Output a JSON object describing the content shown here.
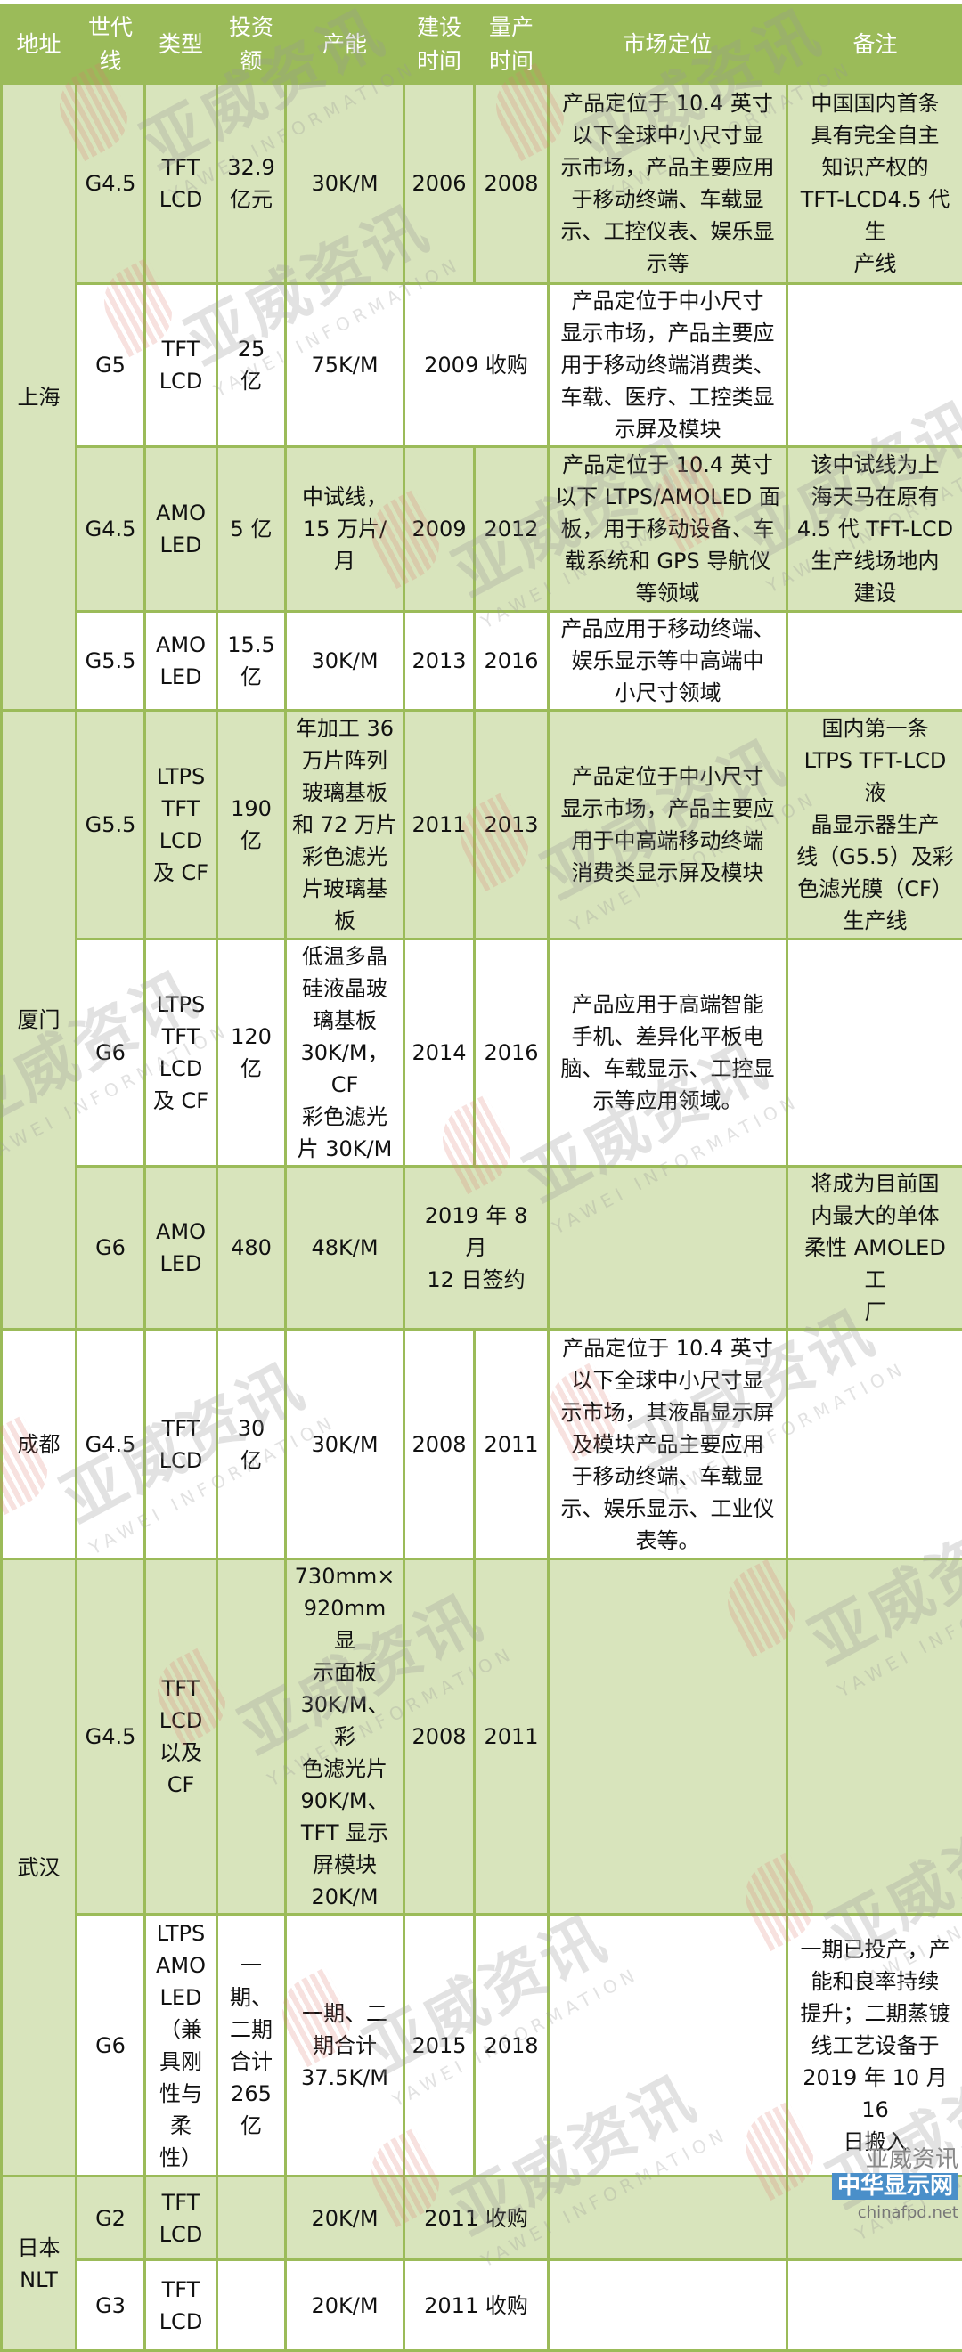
{
  "header": {
    "columns": [
      "地址",
      "世代\n线",
      "类型",
      "投资\n额",
      "产能",
      "建设\n时间",
      "量产\n时间",
      "市场定位",
      "备注"
    ]
  },
  "groups": [
    {
      "city": "上海",
      "rows": [
        {
          "shaded": true,
          "gen": "G4.5",
          "type": "TFT\nLCD",
          "invest": "32.9\n亿元",
          "capacity": "30K/M",
          "build": "2006",
          "mass": "2008",
          "market": "产品定位于 10.4 英寸\n以下全球中小尺寸显\n示市场，产品主要应用\n于移动终端、车载显\n示、工控仪表、娱乐显\n示等",
          "note": "中国国内首条\n具有完全自主\n知识产权的\nTFT-LCD4.5 代生\n产线"
        },
        {
          "shaded": false,
          "gen": "G5",
          "type": "TFT\nLCD",
          "invest": "25\n亿",
          "capacity": "75K/M",
          "build_mass": "2009 收购",
          "market": "产品定位于中小尺寸\n显示市场，产品主要应\n用于移动终端消费类、\n车载、医疗、工控类显\n示屏及模块",
          "note": ""
        },
        {
          "shaded": true,
          "gen": "G4.5",
          "type": "AMO\nLED",
          "invest": "5 亿",
          "capacity": "中试线，\n15 万片/\n月",
          "build": "2009",
          "mass": "2012",
          "market": "产品定位于 10.4 英寸\n以下 LTPS/AMOLED 面\n板，用于移动设备、车\n载系统和 GPS 导航仪\n等领域",
          "note": "该中试线为上\n海天马在原有\n4.5 代 TFT-LCD\n生产线场地内\n建设"
        },
        {
          "shaded": false,
          "gen": "G5.5",
          "type": "AMO\nLED",
          "invest": "15.5\n亿",
          "capacity": "30K/M",
          "build": "2013",
          "mass": "2016",
          "market": "产品应用于移动终端、\n娱乐显示等中高端中\n小尺寸领域",
          "note": ""
        }
      ]
    },
    {
      "city": "厦门",
      "rows": [
        {
          "shaded": true,
          "gen": "G5.5",
          "type": "LTPS\nTFT\nLCD\n及 CF",
          "invest": "190\n亿",
          "capacity": "年加工 36\n万片阵列\n玻璃基板\n和 72 万片\n彩色滤光\n片玻璃基\n板",
          "build": "2011",
          "mass": "2013",
          "market": "产品定位于中小尺寸\n显示市场，产品主要应\n用于中高端移动终端\n消费类显示屏及模块",
          "note": "国内第一条\nLTPS TFT-LCD 液\n晶显示器生产\n线（G5.5）及彩\n色滤光膜（CF）\n生产线"
        },
        {
          "shaded": false,
          "gen": "G6",
          "type": "LTPS\nTFT\nLCD\n及 CF",
          "invest": "120\n亿",
          "capacity": "低温多晶\n硅液晶玻\n璃基板\n30K/M，CF\n彩色滤光\n片 30K/M",
          "build": "2014",
          "mass": "2016",
          "market": "产品应用于高端智能\n手机、差异化平板电\n脑、车载显示、工控显\n示等应用领域。",
          "note": ""
        },
        {
          "shaded": true,
          "gen": "G6",
          "type": "AMO\nLED",
          "invest": "480",
          "capacity": "48K/M",
          "build_mass": "2019 年 8 月\n12 日签约",
          "market": "",
          "note": "将成为目前国\n内最大的单体\n柔性 AMOLED 工\n厂"
        }
      ]
    },
    {
      "city": "成都",
      "city_shaded": false,
      "rows": [
        {
          "shaded": false,
          "gen": "G4.5",
          "type": "TFT\nLCD",
          "invest": "30\n亿",
          "capacity": "30K/M",
          "build": "2008",
          "mass": "2011",
          "market": "产品定位于 10.4 英寸\n以下全球中小尺寸显\n示市场，其液晶显示屏\n及模块产品主要应用\n于移动终端、车载显\n示、娱乐显示、工业仪\n表等。",
          "note": ""
        }
      ]
    },
    {
      "city": "武汉",
      "rows": [
        {
          "shaded": true,
          "gen": "G4.5",
          "type": "TFT\nLCD\n以及\nCF",
          "invest": "",
          "capacity": "730mm×\n920mm 显\n示面板\n30K/M、彩\n色滤光片\n90K/M、\nTFT 显示\n屏模块\n20K/M",
          "build": "2008",
          "mass": "2011",
          "market": "",
          "note": ""
        },
        {
          "shaded": false,
          "gen": "G6",
          "type": "LTPS\nAMO\nLED\n（兼\n具刚\n性与\n柔\n性）",
          "invest": "一\n期、\n二期\n合计\n265\n亿",
          "capacity": "一期、二\n期合计\n37.5K/M",
          "build": "2015",
          "mass": "2018",
          "market": "",
          "note": "一期已投产，产\n能和良率持续\n提升；二期蒸镀\n线工艺设备于\n2019 年 10 月 16\n日搬入"
        }
      ]
    },
    {
      "city": "日本\nNLT",
      "rows": [
        {
          "shaded": true,
          "gen": "G2",
          "type": "TFT\nLCD",
          "invest": "",
          "capacity": "20K/M",
          "build_mass": "2011 收购",
          "market": "",
          "note": ""
        },
        {
          "shaded": false,
          "gen": "G3",
          "type": "TFT\nLCD",
          "invest": "",
          "capacity": "20K/M",
          "build_mass": "2011 收购",
          "market": "",
          "note": ""
        }
      ]
    }
  ],
  "watermark": {
    "text": "亚威资讯",
    "subtext": "YAWEI INFORMATION"
  },
  "footer_logo": {
    "wechat_label": "亚威资讯",
    "site_name": "中华显示网",
    "site_url": "chinafpd.net"
  },
  "colors": {
    "header_bg": "#9bbb59",
    "shaded_row": "#d8e4bc",
    "border": "#9bbb59"
  }
}
